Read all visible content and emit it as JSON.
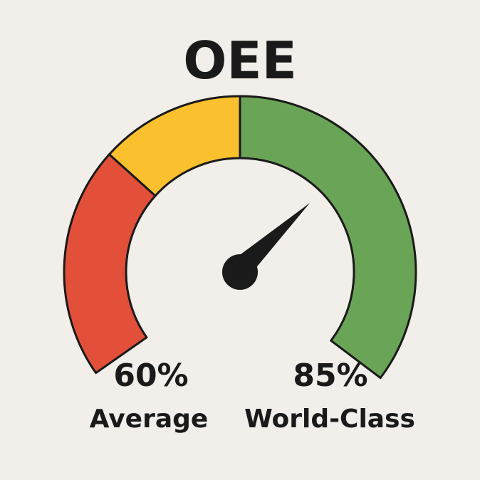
{
  "title": "OEE",
  "colors": {
    "background": "#f2eee9",
    "red_zone": "#e2503a",
    "yellow_zone": "#fbc02d",
    "green_zone": "#6aa457",
    "needle": "#1a1a1a",
    "outline": "#1a1a1a"
  },
  "gauge": {
    "zones": [
      {
        "name": "red",
        "color_key": "red_zone"
      },
      {
        "name": "yellow",
        "color_key": "yellow_zone"
      },
      {
        "name": "green",
        "color_key": "green_zone"
      }
    ]
  },
  "markers": {
    "average": {
      "value_text": "60%",
      "label": "Average"
    },
    "world_class": {
      "value_text": "85%",
      "label": "World-Class"
    }
  }
}
